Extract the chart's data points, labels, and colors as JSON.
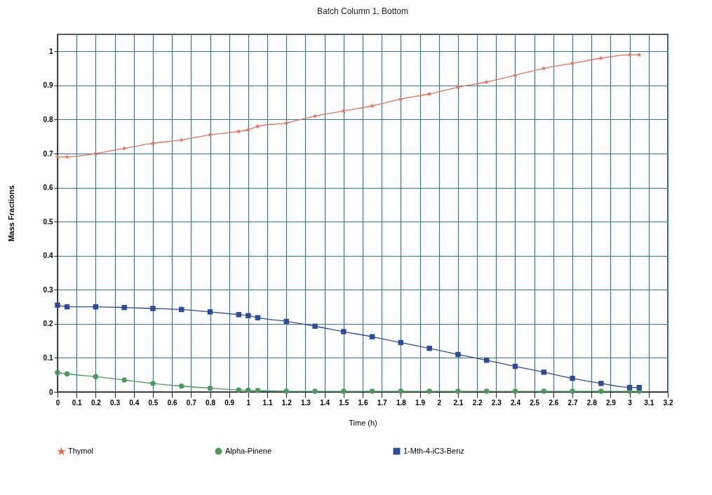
{
  "chart_data": {
    "type": "line",
    "title": "Batch Column 1, Bottom",
    "xlabel": "Time (h)",
    "ylabel": "Mass Fractions",
    "x": [
      0,
      0.05,
      0.2,
      0.35,
      0.5,
      0.65,
      0.8,
      0.95,
      1.0,
      1.05,
      1.2,
      1.35,
      1.5,
      1.65,
      1.8,
      1.95,
      2.1,
      2.25,
      2.4,
      2.55,
      2.7,
      2.85,
      3.0,
      3.05
    ],
    "series": [
      {
        "name": "Thymol",
        "color": "#e8705a",
        "marker": "star",
        "values": [
          0.69,
          0.69,
          0.7,
          0.715,
          0.73,
          0.74,
          0.755,
          0.765,
          0.77,
          0.78,
          0.79,
          0.81,
          0.825,
          0.84,
          0.86,
          0.875,
          0.895,
          0.91,
          0.93,
          0.95,
          0.965,
          0.98,
          0.99,
          0.99
        ]
      },
      {
        "name": "Alpha-Pinene",
        "color": "#4a9a5a",
        "marker": "circle",
        "values": [
          0.057,
          0.053,
          0.045,
          0.035,
          0.025,
          0.017,
          0.011,
          0.006,
          0.005,
          0.004,
          0.002,
          0.002,
          0.002,
          0.002,
          0.002,
          0.002,
          0.002,
          0.002,
          0.002,
          0.002,
          0.002,
          0.002,
          0.002,
          0.002
        ]
      },
      {
        "name": "1-Mth-4-iC3-Benz",
        "color": "#2e4a9a",
        "marker": "square",
        "values": [
          0.255,
          0.25,
          0.25,
          0.248,
          0.245,
          0.242,
          0.235,
          0.227,
          0.224,
          0.218,
          0.207,
          0.193,
          0.177,
          0.162,
          0.145,
          0.128,
          0.11,
          0.093,
          0.075,
          0.058,
          0.04,
          0.025,
          0.013,
          0.013
        ]
      }
    ],
    "xlim": [
      0,
      3.2
    ],
    "xticks": [
      0,
      0.1,
      0.2,
      0.3,
      0.4,
      0.5,
      0.6,
      0.7,
      0.8,
      0.9,
      1,
      1.1,
      1.2,
      1.3,
      1.4,
      1.5,
      1.6,
      1.7,
      1.8,
      1.9,
      2,
      2.1,
      2.2,
      2.3,
      2.4,
      2.5,
      2.6,
      2.7,
      2.8,
      2.9,
      3,
      3.1,
      3.2
    ],
    "ylim": [
      0,
      1.05
    ],
    "yticks": [
      0,
      0.1,
      0.2,
      0.3,
      0.4,
      0.5,
      0.6,
      0.7,
      0.8,
      0.9,
      1
    ],
    "grid": true,
    "legend": "bottom"
  }
}
